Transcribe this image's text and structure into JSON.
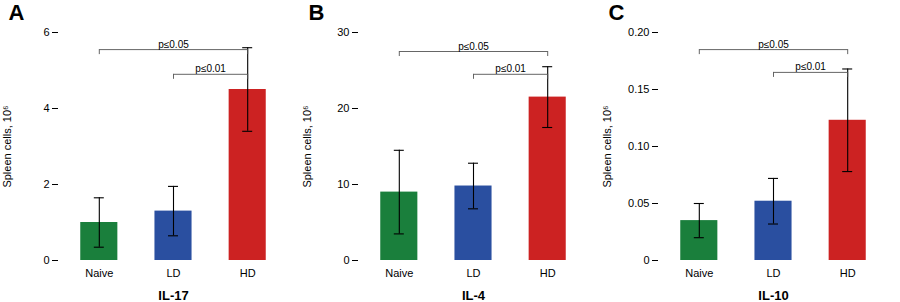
{
  "chart_data": [
    {
      "type": "bar",
      "title": "A",
      "xlabel": "IL-17",
      "ylabel": "Spleen cells, 10⁶",
      "categories": [
        "Naive",
        "LD",
        "HD"
      ],
      "values": [
        1.0,
        1.3,
        4.5
      ],
      "errors": [
        0.65,
        0.65,
        1.1
      ],
      "colors": [
        "#1a7f3c",
        "#2a4fa0",
        "#cc2222"
      ],
      "ylim": [
        0,
        6
      ],
      "yticks": [
        0,
        2,
        4,
        6
      ],
      "annotations": [
        {
          "from": "Naive",
          "to": "HD",
          "y": 5.55,
          "label": "p≤0.05",
          "color": "#555555"
        },
        {
          "from": "LD",
          "to": "HD",
          "y": 4.9,
          "label": "p≤0.01",
          "color": "#555555"
        }
      ]
    },
    {
      "type": "bar",
      "title": "B",
      "xlabel": "IL-4",
      "ylabel": "Spleen cells, 10⁶",
      "categories": [
        "Naive",
        "LD",
        "HD"
      ],
      "values": [
        9.0,
        9.8,
        21.5
      ],
      "errors": [
        5.5,
        3.0,
        4.0
      ],
      "colors": [
        "#1a7f3c",
        "#2a4fa0",
        "#cc2222"
      ],
      "ylim": [
        0,
        30
      ],
      "yticks": [
        0,
        10,
        20,
        30
      ],
      "annotations": [
        {
          "from": "Naive",
          "to": "HD",
          "y": 27.5,
          "label": "p≤0.05",
          "color": "#555555"
        },
        {
          "from": "LD",
          "to": "HD",
          "y": 24.5,
          "label": "p≤0.01",
          "color": "#555555"
        }
      ]
    },
    {
      "type": "bar",
      "title": "C",
      "xlabel": "IL-10",
      "ylabel": "Spleen cells, 10⁶",
      "categories": [
        "Naive",
        "LD",
        "HD"
      ],
      "values": [
        0.035,
        0.052,
        0.123
      ],
      "errors": [
        0.015,
        0.02,
        0.045
      ],
      "colors": [
        "#1a7f3c",
        "#2a4fa0",
        "#cc2222"
      ],
      "ylim": [
        0,
        0.2
      ],
      "yticks": [
        0,
        0.05,
        {
          "value": 0.1,
          "label": "0.10"
        },
        0.15,
        {
          "value": 0.2,
          "label": "0.20"
        }
      ],
      "annotations": [
        {
          "from": "Naive",
          "to": "HD",
          "y": 0.185,
          "label": "p≤0.05",
          "color": "#555555"
        },
        {
          "from": "LD",
          "to": "HD",
          "y": 0.165,
          "label": "p≤0.01",
          "color": "#555555"
        }
      ]
    }
  ]
}
